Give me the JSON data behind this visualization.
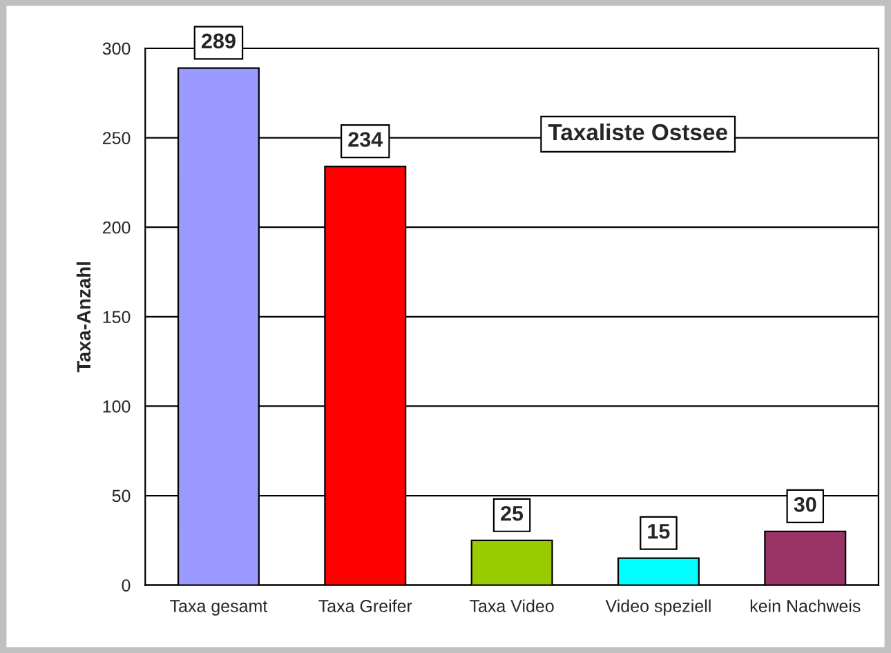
{
  "chart_data": {
    "type": "bar",
    "title": "Taxaliste Ostsee",
    "ylabel": "Taxa-Anzahl",
    "categories": [
      "Taxa gesamt",
      "Taxa Greifer",
      "Taxa Video",
      "Video speziell",
      "kein Nachweis"
    ],
    "values": [
      289,
      234,
      25,
      15,
      30
    ],
    "colors": [
      "#9999ff",
      "#ff0000",
      "#99cc00",
      "#00ffff",
      "#993366"
    ],
    "ylim": [
      0,
      300
    ],
    "yticks": [
      0,
      50,
      100,
      150,
      200,
      250,
      300
    ],
    "grid": "y",
    "data_labels": true,
    "legend": false
  }
}
